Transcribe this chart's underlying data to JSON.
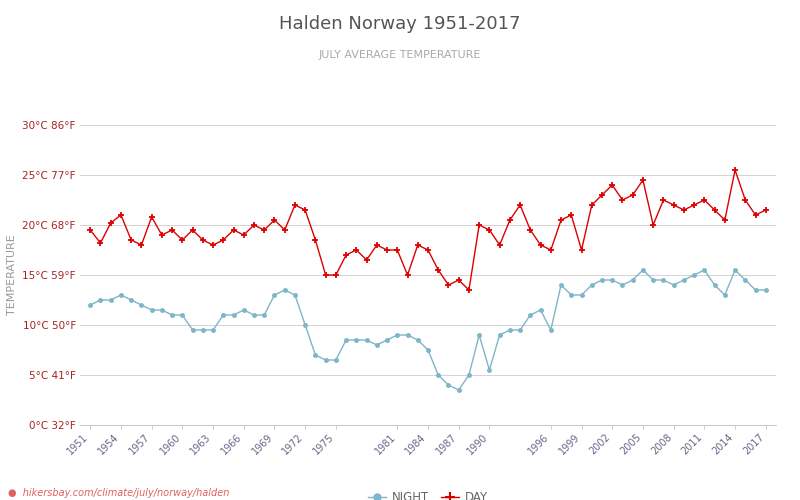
{
  "title": "Halden Norway 1951-2017",
  "subtitle": "JULY AVERAGE TEMPERATURE",
  "ylabel": "TEMPERATURE",
  "title_color": "#555555",
  "subtitle_color": "#999999",
  "ylabel_color": "#999999",
  "background_color": "#ffffff",
  "grid_color": "#cccccc",
  "watermark": "hikersbay.com/climate/july/norway/halden",
  "years": [
    1951,
    1952,
    1953,
    1954,
    1955,
    1956,
    1957,
    1958,
    1959,
    1960,
    1961,
    1962,
    1963,
    1964,
    1965,
    1966,
    1967,
    1968,
    1969,
    1970,
    1971,
    1972,
    1973,
    1974,
    1975,
    1976,
    1977,
    1978,
    1979,
    1980,
    1981,
    1982,
    1983,
    1984,
    1985,
    1986,
    1987,
    1988,
    1989,
    1990,
    1991,
    1992,
    1993,
    1994,
    1995,
    1996,
    1997,
    1998,
    1999,
    2000,
    2001,
    2002,
    2003,
    2004,
    2005,
    2006,
    2007,
    2008,
    2009,
    2010,
    2011,
    2012,
    2013,
    2014,
    2015,
    2016,
    2017
  ],
  "day": [
    19.5,
    18.2,
    20.2,
    21.0,
    18.5,
    18.0,
    20.8,
    19.0,
    19.5,
    18.5,
    19.5,
    18.5,
    18.0,
    18.5,
    19.5,
    19.0,
    20.0,
    19.5,
    20.5,
    19.5,
    22.0,
    21.5,
    18.5,
    15.0,
    15.0,
    17.0,
    17.5,
    16.5,
    18.0,
    17.5,
    17.5,
    15.0,
    18.0,
    17.5,
    15.5,
    14.0,
    14.5,
    13.5,
    20.0,
    19.5,
    18.0,
    20.5,
    22.0,
    19.5,
    18.0,
    17.5,
    20.5,
    21.0,
    17.5,
    22.0,
    23.0,
    24.0,
    22.5,
    23.0,
    24.5,
    20.0,
    22.5,
    22.0,
    21.5,
    22.0,
    22.5,
    21.5,
    20.5,
    25.5,
    22.5,
    21.0,
    21.5
  ],
  "night": [
    12.0,
    12.5,
    12.5,
    13.0,
    12.5,
    12.0,
    11.5,
    11.5,
    11.0,
    11.0,
    9.5,
    9.5,
    9.5,
    11.0,
    11.0,
    11.5,
    11.0,
    11.0,
    13.0,
    13.5,
    13.0,
    10.0,
    7.0,
    6.5,
    6.5,
    8.5,
    8.5,
    8.5,
    8.0,
    8.5,
    9.0,
    9.0,
    8.5,
    7.5,
    5.0,
    4.0,
    3.5,
    5.0,
    9.0,
    5.5,
    9.0,
    9.5,
    9.5,
    11.0,
    11.5,
    9.5,
    14.0,
    13.0,
    13.0,
    14.0,
    14.5,
    14.5,
    14.0,
    14.5,
    15.5,
    14.5,
    14.5,
    14.0,
    14.5,
    15.0,
    15.5,
    14.0,
    13.0,
    15.5,
    14.5,
    13.5,
    13.5
  ],
  "day_color": "#dd0000",
  "night_color": "#7eb5c8",
  "ylim": [
    0,
    30
  ],
  "yticks_c": [
    0,
    5,
    10,
    15,
    20,
    25,
    30
  ],
  "ytick_labels": [
    "0°C 32°F",
    "5°C 41°F",
    "10°C 50°F",
    "15°C 59°F",
    "20°C 68°F",
    "25°C 77°F",
    "30°C 86°F"
  ],
  "xtick_years": [
    1951,
    1954,
    1957,
    1960,
    1963,
    1966,
    1969,
    1972,
    1975,
    1981,
    1984,
    1987,
    1990,
    1996,
    1999,
    2002,
    2005,
    2008,
    2011,
    2014,
    2017
  ]
}
